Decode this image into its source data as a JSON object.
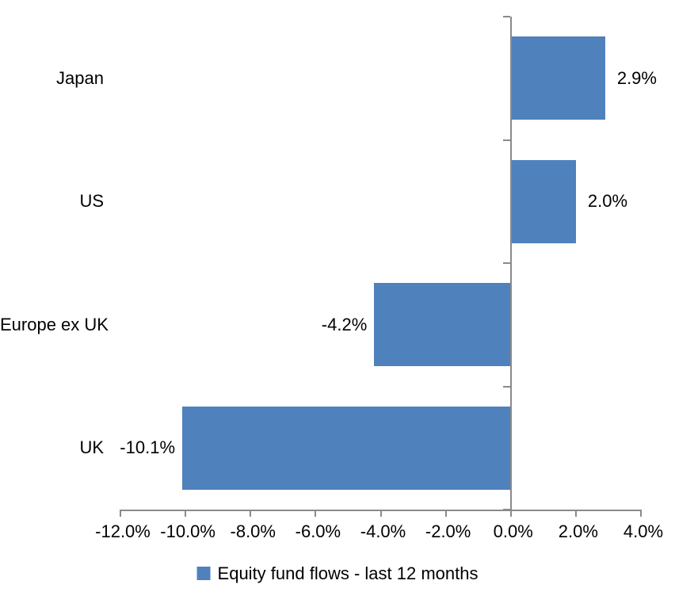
{
  "chart_data": {
    "type": "bar",
    "orientation": "horizontal",
    "title": "",
    "xlabel": "",
    "ylabel": "",
    "grid": false,
    "background": "#ffffff",
    "categories": [
      "Japan",
      "US",
      "Europe ex UK",
      "UK"
    ],
    "series": [
      {
        "name": "Equity fund flows - last 12 months",
        "values": [
          2.9,
          2.0,
          -4.2,
          -10.1
        ]
      }
    ],
    "data_labels": [
      "2.9%",
      "2.0%",
      "-4.2%",
      "-10.1%"
    ],
    "xlim": [
      -12,
      4
    ],
    "x_tick_values": [
      -12,
      -10,
      -8,
      -6,
      -4,
      -2,
      0,
      2,
      4
    ],
    "x_tick_labels": [
      "-12.0%",
      "-10.0%",
      "-8.0%",
      "-6.0%",
      "-4.0%",
      "-2.0%",
      "0.0%",
      "2.0%",
      "4.0%"
    ],
    "legend": {
      "position": "bottom",
      "label": "Equity fund flows - last 12 months"
    },
    "colors": {
      "bar": "#4f81bd",
      "axis": "#8a8a8a",
      "text": "#000000",
      "legend_marker": "#4f81bd"
    }
  }
}
